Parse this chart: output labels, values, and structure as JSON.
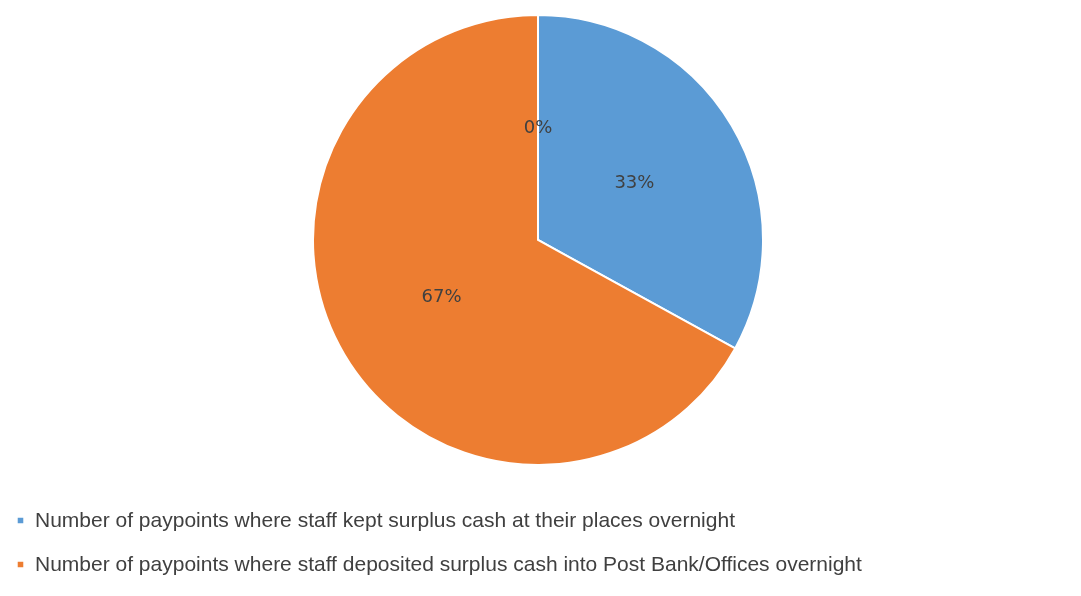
{
  "chart_data": {
    "type": "pie",
    "categories": [
      "Number of paypoints where staff kept surplus cash at their places overnight",
      "Number of paypoints where staff deposited surplus cash into Post Bank/Offices overnight",
      null
    ],
    "values": [
      33,
      67,
      0
    ],
    "colors": [
      "#5b9bd5",
      "#ed7d31",
      "#a5a5a5"
    ],
    "value_labels": [
      "33%",
      "67%",
      "0%"
    ],
    "legend": "bottom"
  }
}
